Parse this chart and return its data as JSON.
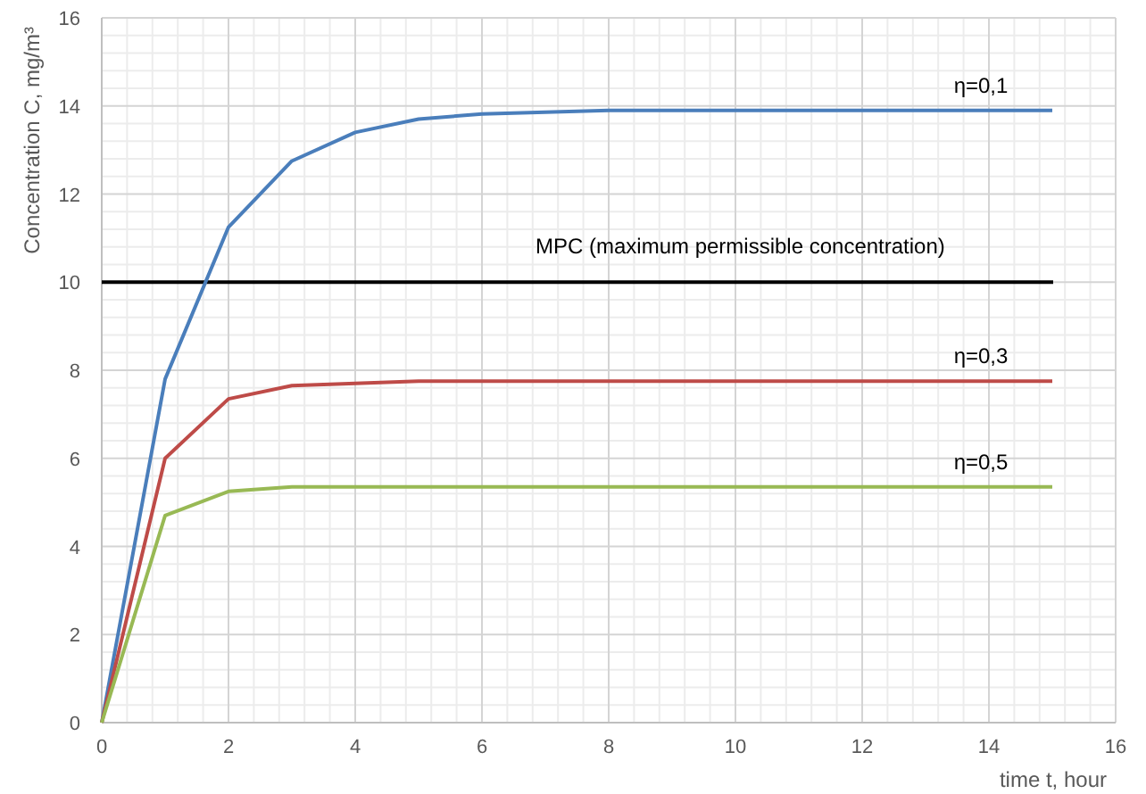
{
  "chart_data": {
    "type": "line",
    "xlabel": "time t, hour",
    "ylabel": "Concentration C, mg/m³",
    "xlim": [
      0,
      16
    ],
    "ylim": [
      0,
      16
    ],
    "xticks": [
      0,
      2,
      4,
      6,
      8,
      10,
      12,
      14,
      16
    ],
    "yticks": [
      0,
      2,
      4,
      6,
      8,
      10,
      12,
      14,
      16
    ],
    "grid": true,
    "marker": "none",
    "line_style": "solid",
    "series": [
      {
        "name": "η=0,1",
        "color": "#4a7ebb",
        "x": [
          0,
          1,
          2,
          3,
          4,
          5,
          6,
          8,
          15
        ],
        "values": [
          0,
          7.8,
          11.25,
          12.75,
          13.4,
          13.7,
          13.82,
          13.9,
          13.9
        ]
      },
      {
        "name": "η=0,3",
        "color": "#be4b48",
        "x": [
          0,
          1,
          2,
          3,
          4,
          5,
          15
        ],
        "values": [
          0,
          6,
          7.35,
          7.65,
          7.7,
          7.75,
          7.75
        ]
      },
      {
        "name": "η=0,5",
        "color": "#98b954",
        "x": [
          0,
          1,
          2,
          3,
          15
        ],
        "values": [
          0,
          4.7,
          5.25,
          5.35,
          5.35
        ]
      }
    ],
    "ref_lines": [
      {
        "axis": "y",
        "value": 10,
        "label": "MPC (maximum permissible concentration)",
        "color": "#000000"
      }
    ]
  }
}
